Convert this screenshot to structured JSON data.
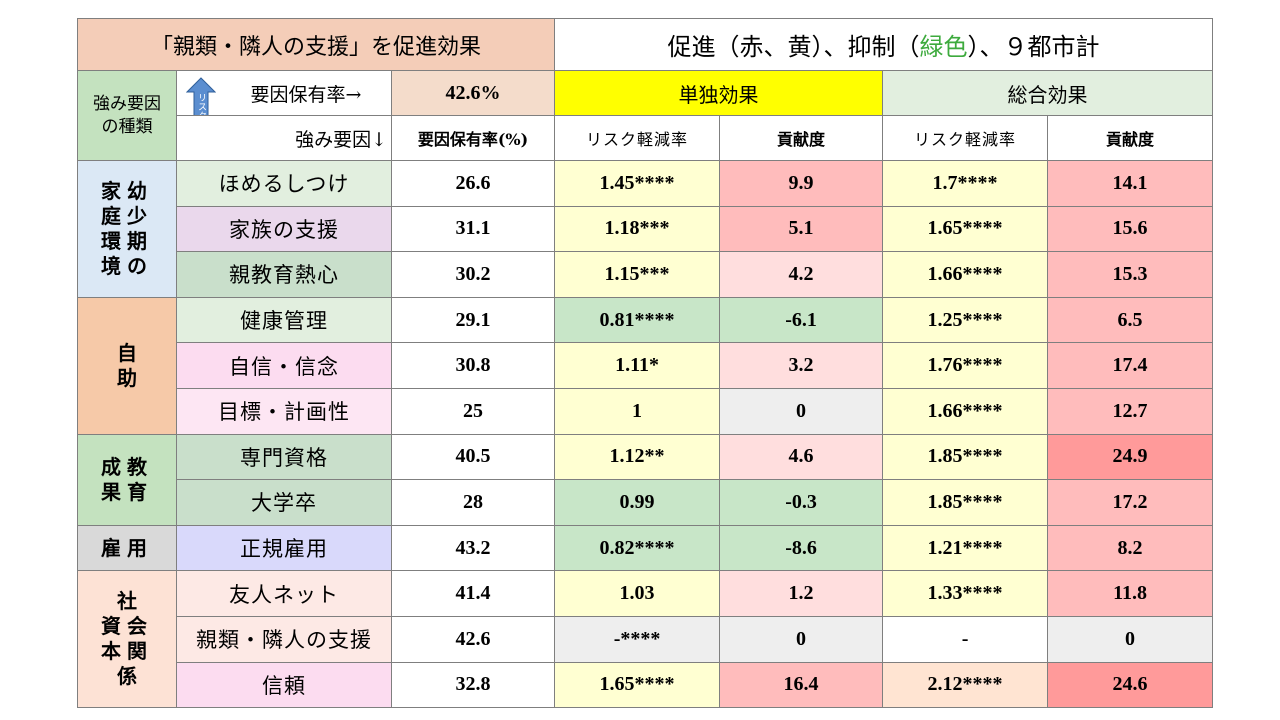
{
  "title_left": "「親類・隣人の支援」を促進効果",
  "title_right_prefix": "促進（赤、黄）、抑制（",
  "title_right_green": "緑色",
  "title_right_suffix": "）、９都市計",
  "header": {
    "kind_label_1": "強み要因",
    "kind_label_2": "の種類",
    "arrow_text": "リスク軽減",
    "holding_rate_label": "要因保有率→",
    "holding_rate_value": "42.6%",
    "strength_label": "強み要因↓",
    "col_holding": "要因保有率(%)",
    "single_effect": "単独効果",
    "total_effect": "総合効果",
    "col_risk_single": "リスク軽減率",
    "col_contrib_single": "貢献度",
    "col_risk_total": "リスク軽減率",
    "col_contrib_total": "貢献度"
  },
  "colors": {
    "title_left_bg": "#f4cdb8",
    "single_header_bg": "#ffff00",
    "total_header_bg": "#e2efdf",
    "green_text": "#3daa3d",
    "yellow_light": "#ffffd2",
    "green_cell": "#c8e6c8",
    "pink_light": "#ffdede",
    "pink_mid": "#ffbcbc",
    "pink_strong": "#ff9a9a",
    "gray_cell": "#eeeeee"
  },
  "categories": [
    {
      "lines": [
        "家幼",
        "庭少",
        "環期",
        "境の"
      ],
      "bg": "#dbe8f5",
      "rowspan": 3
    },
    {
      "lines": [
        "自",
        "助"
      ],
      "bg": "#f6c9a8",
      "rowspan": 3
    },
    {
      "lines": [
        "成教",
        "果育"
      ],
      "bg": "#c4e2bf",
      "rowspan": 2
    },
    {
      "lines": [
        "雇用"
      ],
      "bg": "#d9d9d9",
      "rowspan": 1
    },
    {
      "lines": [
        "社",
        "資会",
        "本関",
        "係"
      ],
      "bg": "#fde2d5",
      "rowspan": 3
    }
  ],
  "rows": [
    {
      "factor": "ほめるしつけ",
      "fbg": "#e2efdf",
      "rate": "26.6",
      "rs": "1.45****",
      "rsbg": "#ffffd2",
      "cs": "9.9",
      "csbg": "#ffbcbc",
      "rt": "1.7****",
      "rtbg": "#ffffd2",
      "ct": "14.1",
      "ctbg": "#ffbcbc"
    },
    {
      "factor": "家族の支援",
      "fbg": "#ead8ec",
      "rate": "31.1",
      "rs": "1.18***",
      "rsbg": "#ffffd2",
      "cs": "5.1",
      "csbg": "#ffbcbc",
      "rt": "1.65****",
      "rtbg": "#ffffd2",
      "ct": "15.6",
      "ctbg": "#ffbcbc"
    },
    {
      "factor": "親教育熱心",
      "fbg": "#c9dfcb",
      "rate": "30.2",
      "rs": "1.15***",
      "rsbg": "#ffffd2",
      "cs": "4.2",
      "csbg": "#ffdede",
      "rt": "1.66****",
      "rtbg": "#ffffd2",
      "ct": "15.3",
      "ctbg": "#ffbcbc"
    },
    {
      "factor": "健康管理",
      "fbg": "#e2efdf",
      "rate": "29.1",
      "rs": "0.81****",
      "rsbg": "#c8e6c8",
      "cs": "-6.1",
      "csbg": "#c8e6c8",
      "rt": "1.25****",
      "rtbg": "#ffffd2",
      "ct": "6.5",
      "ctbg": "#ffbcbc"
    },
    {
      "factor": "自信・信念",
      "fbg": "#fcdcf0",
      "rate": "30.8",
      "rs": "1.11*",
      "rsbg": "#ffffd2",
      "cs": "3.2",
      "csbg": "#ffdede",
      "rt": "1.76****",
      "rtbg": "#ffffd2",
      "ct": "17.4",
      "ctbg": "#ffbcbc"
    },
    {
      "factor": "目標・計画性",
      "fbg": "#fde6f3",
      "rate": "25",
      "rs": "1",
      "rsbg": "#ffffd2",
      "cs": "0",
      "csbg": "#eeeeee",
      "rt": "1.66****",
      "rtbg": "#ffffd2",
      "ct": "12.7",
      "ctbg": "#ffbcbc"
    },
    {
      "factor": "専門資格",
      "fbg": "#c9dfcb",
      "rate": "40.5",
      "rs": "1.12**",
      "rsbg": "#ffffd2",
      "cs": "4.6",
      "csbg": "#ffdede",
      "rt": "1.85****",
      "rtbg": "#ffffd2",
      "ct": "24.9",
      "ctbg": "#ff9a9a"
    },
    {
      "factor": "大学卒",
      "fbg": "#c9dfcb",
      "rate": "28",
      "rs": "0.99",
      "rsbg": "#c8e6c8",
      "cs": "-0.3",
      "csbg": "#c8e6c8",
      "rt": "1.85****",
      "rtbg": "#ffffd2",
      "ct": "17.2",
      "ctbg": "#ffbcbc"
    },
    {
      "factor": "正規雇用",
      "fbg": "#d9d9fb",
      "rate": "43.2",
      "rs": "0.82****",
      "rsbg": "#c8e6c8",
      "cs": "-8.6",
      "csbg": "#c8e6c8",
      "rt": "1.21****",
      "rtbg": "#ffffd2",
      "ct": "8.2",
      "ctbg": "#ffbcbc"
    },
    {
      "factor": "友人ネット",
      "fbg": "#fde9e5",
      "rate": "41.4",
      "rs": "1.03",
      "rsbg": "#ffffd2",
      "cs": "1.2",
      "csbg": "#ffdede",
      "rt": "1.33****",
      "rtbg": "#ffffd2",
      "ct": "11.8",
      "ctbg": "#ffbcbc"
    },
    {
      "factor": "親類・隣人の支援",
      "fbg": "#fde9e5",
      "rate": "42.6",
      "rs": "-****",
      "rsbg": "#eeeeee",
      "cs": "0",
      "csbg": "#eeeeee",
      "rt": "-",
      "rtbg": "#ffffff",
      "ct": "0",
      "ctbg": "#eeeeee"
    },
    {
      "factor": "信頼",
      "fbg": "#fcdcf0",
      "rate": "32.8",
      "rs": "1.65****",
      "rsbg": "#ffffd2",
      "cs": "16.4",
      "csbg": "#ffbcbc",
      "rt": "2.12****",
      "rtbg": "#ffe4d2",
      "ct": "24.6",
      "ctbg": "#ff9a9a"
    }
  ]
}
